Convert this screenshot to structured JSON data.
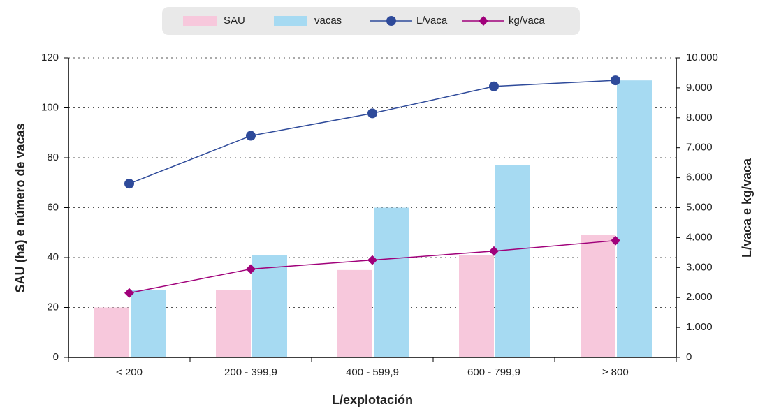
{
  "chart_data": {
    "type": "bar-line",
    "xlabel": "L/explotación",
    "ylabel": "SAU (ha) e número de vacas",
    "y2label": "L/vaca e kg/vaca",
    "categories": [
      "< 200",
      "200 - 399,9",
      "400 - 599,9",
      "600 - 799,9",
      "≥ 800"
    ],
    "series": [
      {
        "name": "SAU",
        "type": "bar",
        "color": "#f7c8dc",
        "values": [
          20,
          27,
          35,
          41,
          49
        ]
      },
      {
        "name": "vacas",
        "type": "bar",
        "color": "#a6daf2",
        "values": [
          27,
          41,
          60,
          77,
          111
        ]
      },
      {
        "name": "L/vaca",
        "type": "line",
        "axis": "y2",
        "marker": "circle",
        "color": "#2e4a9a",
        "values": [
          5800,
          7400,
          8150,
          9050,
          9250
        ]
      },
      {
        "name": "kg/vaca",
        "type": "line",
        "axis": "y2",
        "marker": "diamond",
        "color": "#a0007a",
        "values": [
          2150,
          2950,
          3250,
          3550,
          3900
        ]
      }
    ],
    "ylim": [
      0,
      120
    ],
    "yticks": [
      0,
      20,
      40,
      60,
      80,
      100,
      120
    ],
    "y2lim": [
      0,
      10000
    ],
    "y2ticks": [
      0,
      {
        "value": 1000,
        "label": "1.000"
      },
      {
        "value": 2000,
        "label": "2.000"
      },
      {
        "value": 3000,
        "label": "3.000"
      },
      {
        "value": 4000,
        "label": "4.000"
      },
      {
        "value": 5000,
        "label": "5.000"
      },
      {
        "value": 6000,
        "label": "6.000"
      },
      {
        "value": 7000,
        "label": "7.000"
      },
      {
        "value": 8000,
        "label": "8.000"
      },
      {
        "value": 9000,
        "label": "9.000"
      },
      {
        "value": 10000,
        "label": "10.000"
      }
    ],
    "grid": true,
    "legend": "top"
  }
}
